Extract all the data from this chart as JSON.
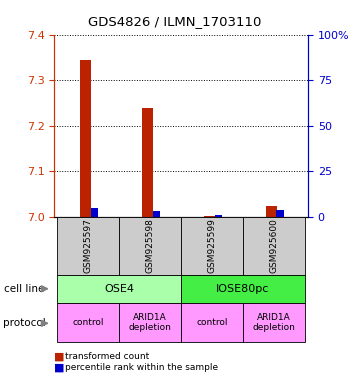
{
  "title": "GDS4826 / ILMN_1703110",
  "samples": [
    "GSM925597",
    "GSM925598",
    "GSM925599",
    "GSM925600"
  ],
  "red_values": [
    7.345,
    7.24,
    7.0,
    7.025
  ],
  "blue_percentile": [
    5,
    3,
    1,
    4
  ],
  "y_min": 7.0,
  "y_max": 7.4,
  "y_ticks_left": [
    7.0,
    7.1,
    7.2,
    7.3,
    7.4
  ],
  "y_ticks_right_vals": [
    0,
    25,
    50,
    75,
    100
  ],
  "y_ticks_right_labels": [
    "0",
    "25",
    "50",
    "75",
    "100%"
  ],
  "cell_line_labels": [
    "OSE4",
    "IOSE80pc"
  ],
  "cell_line_spans": [
    [
      0,
      1
    ],
    [
      2,
      3
    ]
  ],
  "cell_line_colors": [
    "#aaffaa",
    "#44ee44"
  ],
  "protocol_labels": [
    "control",
    "ARID1A\ndepletion",
    "control",
    "ARID1A\ndepletion"
  ],
  "protocol_color": "#ff99ff",
  "legend_red": "transformed count",
  "legend_blue": "percentile rank within the sample",
  "sample_bg_color": "#cccccc",
  "red_color": "#bb2200",
  "blue_color": "#0000cc",
  "left_tick_color": "#cc3300",
  "right_tick_color": "#0000cc"
}
